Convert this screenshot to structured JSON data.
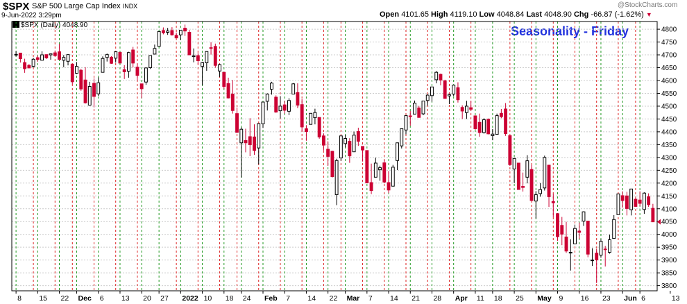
{
  "header": {
    "ticker": "$SPX",
    "name": "S&P 500 Large Cap Index",
    "exchange": "INDX",
    "datetime": "9-Jun-2022 3:29pm",
    "open_label": "Open",
    "open": "4101.65",
    "high_label": "High",
    "high": "4119.10",
    "low_label": "Low",
    "low": "4048.84",
    "last_label": "Last",
    "last": "4048.90",
    "chg_label": "Chg",
    "chg": "-66.87 (-1.62%)",
    "watermark": "@StockCharts.com"
  },
  "legend": {
    "text": "$SPX (Daily) 4048.90"
  },
  "annotation": {
    "title": "Seasonality - Friday"
  },
  "colors": {
    "up": "#000000",
    "down": "#cc0033",
    "friday_line": "#dd2222",
    "monday_line": "#229922",
    "grid": "#cccccc",
    "title": "#2233dd",
    "last_marker": "#cc0033"
  },
  "chart_data": {
    "type": "candlestick",
    "title": "Seasonality - Friday",
    "ylim": [
      3780,
      4830
    ],
    "y_ticks": [
      3800,
      3850,
      3900,
      3950,
      4000,
      4050,
      4100,
      4150,
      4200,
      4250,
      4300,
      4350,
      4400,
      4450,
      4500,
      4550,
      4600,
      4650,
      4700,
      4750,
      4800
    ],
    "x_tick_labels": [
      "8",
      "15",
      "22",
      "Dec",
      "6",
      "13",
      "20",
      "27",
      "2022",
      "10",
      "18",
      "24",
      "Feb",
      "7",
      "14",
      "22",
      "Mar",
      "7",
      "14",
      "21",
      "28",
      "Apr",
      "11",
      "18",
      "25",
      "May",
      "9",
      "16",
      "23",
      "Jun",
      "6",
      "13"
    ],
    "friday_lines": true,
    "monday_lines": true,
    "grid": true,
    "candles": [
      {
        "date": "2021-11-08",
        "o": 4701,
        "h": 4714,
        "l": 4694,
        "c": 4702
      },
      {
        "date": "2021-11-09",
        "o": 4707,
        "h": 4708,
        "l": 4670,
        "c": 4685
      },
      {
        "date": "2021-11-10",
        "o": 4670,
        "h": 4685,
        "l": 4630,
        "c": 4646
      },
      {
        "date": "2021-11-11",
        "o": 4659,
        "h": 4664,
        "l": 4648,
        "c": 4649
      },
      {
        "date": "2021-11-12",
        "o": 4655,
        "h": 4688,
        "l": 4651,
        "c": 4683
      },
      {
        "date": "2021-11-15",
        "o": 4689,
        "h": 4697,
        "l": 4673,
        "c": 4682
      },
      {
        "date": "2021-11-16",
        "o": 4679,
        "h": 4714,
        "l": 4679,
        "c": 4700
      },
      {
        "date": "2021-11-17",
        "o": 4701,
        "h": 4701,
        "l": 4684,
        "c": 4688
      },
      {
        "date": "2021-11-18",
        "o": 4700,
        "h": 4705,
        "l": 4681,
        "c": 4704
      },
      {
        "date": "2021-11-19",
        "o": 4708,
        "h": 4717,
        "l": 4694,
        "c": 4697
      },
      {
        "date": "2021-11-22",
        "o": 4712,
        "h": 4743,
        "l": 4682,
        "c": 4682
      },
      {
        "date": "2021-11-23",
        "o": 4679,
        "h": 4699,
        "l": 4652,
        "c": 4690
      },
      {
        "date": "2021-11-24",
        "o": 4675,
        "h": 4702,
        "l": 4659,
        "c": 4701
      },
      {
        "date": "2021-11-26",
        "o": 4664,
        "h": 4664,
        "l": 4585,
        "c": 4595
      },
      {
        "date": "2021-11-29",
        "o": 4628,
        "h": 4672,
        "l": 4625,
        "c": 4655
      },
      {
        "date": "2021-11-30",
        "o": 4640,
        "h": 4646,
        "l": 4560,
        "c": 4567
      },
      {
        "date": "2021-12-01",
        "o": 4602,
        "h": 4652,
        "l": 4510,
        "c": 4513
      },
      {
        "date": "2021-12-02",
        "o": 4504,
        "h": 4595,
        "l": 4504,
        "c": 4577
      },
      {
        "date": "2021-12-03",
        "o": 4589,
        "h": 4608,
        "l": 4495,
        "c": 4538
      },
      {
        "date": "2021-12-06",
        "o": 4548,
        "h": 4612,
        "l": 4540,
        "c": 4591
      },
      {
        "date": "2021-12-07",
        "o": 4632,
        "h": 4694,
        "l": 4632,
        "c": 4686
      },
      {
        "date": "2021-12-08",
        "o": 4690,
        "h": 4705,
        "l": 4674,
        "c": 4701
      },
      {
        "date": "2021-12-09",
        "o": 4691,
        "h": 4695,
        "l": 4665,
        "c": 4667
      },
      {
        "date": "2021-12-10",
        "o": 4687,
        "h": 4713,
        "l": 4670,
        "c": 4712
      },
      {
        "date": "2021-12-13",
        "o": 4710,
        "h": 4710,
        "l": 4667,
        "c": 4668
      },
      {
        "date": "2021-12-14",
        "o": 4642,
        "h": 4660,
        "l": 4606,
        "c": 4634
      },
      {
        "date": "2021-12-15",
        "o": 4636,
        "h": 4712,
        "l": 4611,
        "c": 4709
      },
      {
        "date": "2021-12-16",
        "o": 4719,
        "h": 4731,
        "l": 4651,
        "c": 4668
      },
      {
        "date": "2021-12-17",
        "o": 4652,
        "h": 4666,
        "l": 4600,
        "c": 4620
      },
      {
        "date": "2021-12-20",
        "o": 4587,
        "h": 4587,
        "l": 4531,
        "c": 4568
      },
      {
        "date": "2021-12-21",
        "o": 4594,
        "h": 4651,
        "l": 4583,
        "c": 4649
      },
      {
        "date": "2021-12-22",
        "o": 4650,
        "h": 4697,
        "l": 4645,
        "c": 4697
      },
      {
        "date": "2021-12-23",
        "o": 4703,
        "h": 4740,
        "l": 4703,
        "c": 4725
      },
      {
        "date": "2021-12-27",
        "o": 4733,
        "h": 4791,
        "l": 4733,
        "c": 4791
      },
      {
        "date": "2021-12-28",
        "o": 4795,
        "h": 4807,
        "l": 4780,
        "c": 4786
      },
      {
        "date": "2021-12-29",
        "o": 4788,
        "h": 4805,
        "l": 4778,
        "c": 4793
      },
      {
        "date": "2021-12-30",
        "o": 4795,
        "h": 4808,
        "l": 4775,
        "c": 4778
      },
      {
        "date": "2021-12-31",
        "o": 4776,
        "h": 4787,
        "l": 4765,
        "c": 4766
      },
      {
        "date": "2022-01-03",
        "o": 4778,
        "h": 4796,
        "l": 4758,
        "c": 4796
      },
      {
        "date": "2022-01-04",
        "o": 4804,
        "h": 4818,
        "l": 4774,
        "c": 4793
      },
      {
        "date": "2022-01-05",
        "o": 4788,
        "h": 4797,
        "l": 4699,
        "c": 4700
      },
      {
        "date": "2022-01-06",
        "o": 4693,
        "h": 4725,
        "l": 4671,
        "c": 4696
      },
      {
        "date": "2022-01-07",
        "o": 4697,
        "h": 4707,
        "l": 4663,
        "c": 4677
      },
      {
        "date": "2022-01-10",
        "o": 4655,
        "h": 4673,
        "l": 4582,
        "c": 4670
      },
      {
        "date": "2022-01-11",
        "o": 4669,
        "h": 4714,
        "l": 4638,
        "c": 4713
      },
      {
        "date": "2022-01-12",
        "o": 4728,
        "h": 4749,
        "l": 4701,
        "c": 4726
      },
      {
        "date": "2022-01-13",
        "o": 4733,
        "h": 4744,
        "l": 4650,
        "c": 4659
      },
      {
        "date": "2022-01-14",
        "o": 4637,
        "h": 4665,
        "l": 4614,
        "c": 4662
      },
      {
        "date": "2022-01-18",
        "o": 4632,
        "h": 4632,
        "l": 4568,
        "c": 4577
      },
      {
        "date": "2022-01-19",
        "o": 4588,
        "h": 4611,
        "l": 4530,
        "c": 4532
      },
      {
        "date": "2022-01-20",
        "o": 4547,
        "h": 4602,
        "l": 4471,
        "c": 4483
      },
      {
        "date": "2022-01-21",
        "o": 4471,
        "h": 4495,
        "l": 4395,
        "c": 4398
      },
      {
        "date": "2022-01-24",
        "o": 4357,
        "h": 4417,
        "l": 4222,
        "c": 4410
      },
      {
        "date": "2022-01-25",
        "o": 4366,
        "h": 4412,
        "l": 4320,
        "c": 4357
      },
      {
        "date": "2022-01-26",
        "o": 4381,
        "h": 4453,
        "l": 4305,
        "c": 4350
      },
      {
        "date": "2022-01-27",
        "o": 4380,
        "h": 4429,
        "l": 4310,
        "c": 4327
      },
      {
        "date": "2022-01-28",
        "o": 4337,
        "h": 4433,
        "l": 4273,
        "c": 4432
      },
      {
        "date": "2022-01-31",
        "o": 4431,
        "h": 4516,
        "l": 4415,
        "c": 4516
      },
      {
        "date": "2022-02-01",
        "o": 4519,
        "h": 4550,
        "l": 4483,
        "c": 4547
      },
      {
        "date": "2022-02-02",
        "o": 4566,
        "h": 4595,
        "l": 4545,
        "c": 4590
      },
      {
        "date": "2022-02-03",
        "o": 4535,
        "h": 4542,
        "l": 4474,
        "c": 4477
      },
      {
        "date": "2022-02-04",
        "o": 4482,
        "h": 4539,
        "l": 4452,
        "c": 4500
      },
      {
        "date": "2022-02-07",
        "o": 4505,
        "h": 4521,
        "l": 4471,
        "c": 4484
      },
      {
        "date": "2022-02-08",
        "o": 4480,
        "h": 4531,
        "l": 4465,
        "c": 4522
      },
      {
        "date": "2022-02-09",
        "o": 4547,
        "h": 4590,
        "l": 4547,
        "c": 4587
      },
      {
        "date": "2022-02-10",
        "o": 4553,
        "h": 4589,
        "l": 4492,
        "c": 4504
      },
      {
        "date": "2022-02-11",
        "o": 4506,
        "h": 4527,
        "l": 4401,
        "c": 4419
      },
      {
        "date": "2022-02-14",
        "o": 4412,
        "h": 4426,
        "l": 4365,
        "c": 4401
      },
      {
        "date": "2022-02-15",
        "o": 4429,
        "h": 4472,
        "l": 4429,
        "c": 4472
      },
      {
        "date": "2022-02-16",
        "o": 4455,
        "h": 4490,
        "l": 4429,
        "c": 4475
      },
      {
        "date": "2022-02-17",
        "o": 4456,
        "h": 4456,
        "l": 4373,
        "c": 4380
      },
      {
        "date": "2022-02-18",
        "o": 4384,
        "h": 4394,
        "l": 4327,
        "c": 4348
      },
      {
        "date": "2022-02-22",
        "o": 4332,
        "h": 4363,
        "l": 4267,
        "c": 4304
      },
      {
        "date": "2022-02-23",
        "o": 4324,
        "h": 4326,
        "l": 4222,
        "c": 4225
      },
      {
        "date": "2022-02-24",
        "o": 4155,
        "h": 4295,
        "l": 4114,
        "c": 4288
      },
      {
        "date": "2022-02-25",
        "o": 4298,
        "h": 4385,
        "l": 4287,
        "c": 4384
      },
      {
        "date": "2022-02-28",
        "o": 4354,
        "h": 4388,
        "l": 4339,
        "c": 4374
      },
      {
        "date": "2022-03-01",
        "o": 4363,
        "h": 4375,
        "l": 4279,
        "c": 4306
      },
      {
        "date": "2022-03-02",
        "o": 4322,
        "h": 4401,
        "l": 4322,
        "c": 4387
      },
      {
        "date": "2022-03-03",
        "o": 4401,
        "h": 4416,
        "l": 4345,
        "c": 4363
      },
      {
        "date": "2022-03-04",
        "o": 4343,
        "h": 4343,
        "l": 4284,
        "c": 4329
      },
      {
        "date": "2022-03-07",
        "o": 4327,
        "h": 4327,
        "l": 4199,
        "c": 4201
      },
      {
        "date": "2022-03-08",
        "o": 4202,
        "h": 4276,
        "l": 4157,
        "c": 4171
      },
      {
        "date": "2022-03-09",
        "o": 4223,
        "h": 4299,
        "l": 4223,
        "c": 4278
      },
      {
        "date": "2022-03-10",
        "o": 4252,
        "h": 4268,
        "l": 4209,
        "c": 4260
      },
      {
        "date": "2022-03-11",
        "o": 4279,
        "h": 4291,
        "l": 4200,
        "c": 4204
      },
      {
        "date": "2022-03-14",
        "o": 4202,
        "h": 4247,
        "l": 4161,
        "c": 4173
      },
      {
        "date": "2022-03-15",
        "o": 4188,
        "h": 4271,
        "l": 4187,
        "c": 4262
      },
      {
        "date": "2022-03-16",
        "o": 4288,
        "h": 4358,
        "l": 4251,
        "c": 4357
      },
      {
        "date": "2022-03-17",
        "o": 4345,
        "h": 4412,
        "l": 4335,
        "c": 4412
      },
      {
        "date": "2022-03-18",
        "o": 4407,
        "h": 4465,
        "l": 4390,
        "c": 4463
      },
      {
        "date": "2022-03-21",
        "o": 4462,
        "h": 4481,
        "l": 4424,
        "c": 4461
      },
      {
        "date": "2022-03-22",
        "o": 4469,
        "h": 4522,
        "l": 4469,
        "c": 4512
      },
      {
        "date": "2022-03-23",
        "o": 4493,
        "h": 4501,
        "l": 4455,
        "c": 4456
      },
      {
        "date": "2022-03-24",
        "o": 4470,
        "h": 4520,
        "l": 4465,
        "c": 4520
      },
      {
        "date": "2022-03-25",
        "o": 4522,
        "h": 4546,
        "l": 4502,
        "c": 4543
      },
      {
        "date": "2022-03-28",
        "o": 4541,
        "h": 4575,
        "l": 4517,
        "c": 4575
      },
      {
        "date": "2022-03-29",
        "o": 4603,
        "h": 4637,
        "l": 4589,
        "c": 4632
      },
      {
        "date": "2022-03-30",
        "o": 4624,
        "h": 4627,
        "l": 4581,
        "c": 4602
      },
      {
        "date": "2022-03-31",
        "o": 4599,
        "h": 4603,
        "l": 4530,
        "c": 4530
      },
      {
        "date": "2022-04-01",
        "o": 4540,
        "h": 4548,
        "l": 4508,
        "c": 4545
      },
      {
        "date": "2022-04-04",
        "o": 4547,
        "h": 4583,
        "l": 4539,
        "c": 4582
      },
      {
        "date": "2022-04-05",
        "o": 4572,
        "h": 4593,
        "l": 4514,
        "c": 4525
      },
      {
        "date": "2022-04-06",
        "o": 4495,
        "h": 4503,
        "l": 4450,
        "c": 4481
      },
      {
        "date": "2022-04-07",
        "o": 4475,
        "h": 4521,
        "l": 4450,
        "c": 4500
      },
      {
        "date": "2022-04-08",
        "o": 4494,
        "h": 4520,
        "l": 4482,
        "c": 4488
      },
      {
        "date": "2022-04-11",
        "o": 4462,
        "h": 4464,
        "l": 4408,
        "c": 4412
      },
      {
        "date": "2022-04-12",
        "o": 4437,
        "h": 4471,
        "l": 4381,
        "c": 4397
      },
      {
        "date": "2022-04-13",
        "o": 4397,
        "h": 4453,
        "l": 4393,
        "c": 4447
      },
      {
        "date": "2022-04-14",
        "o": 4449,
        "h": 4452,
        "l": 4390,
        "c": 4392
      },
      {
        "date": "2022-04-18",
        "o": 4385,
        "h": 4411,
        "l": 4367,
        "c": 4391
      },
      {
        "date": "2022-04-19",
        "o": 4390,
        "h": 4471,
        "l": 4390,
        "c": 4463
      },
      {
        "date": "2022-04-20",
        "o": 4472,
        "h": 4489,
        "l": 4453,
        "c": 4459
      },
      {
        "date": "2022-04-21",
        "o": 4489,
        "h": 4512,
        "l": 4384,
        "c": 4393
      },
      {
        "date": "2022-04-22",
        "o": 4385,
        "h": 4386,
        "l": 4267,
        "c": 4272
      },
      {
        "date": "2022-04-25",
        "o": 4255,
        "h": 4299,
        "l": 4200,
        "c": 4296
      },
      {
        "date": "2022-04-26",
        "o": 4278,
        "h": 4278,
        "l": 4175,
        "c": 4175
      },
      {
        "date": "2022-04-27",
        "o": 4187,
        "h": 4241,
        "l": 4167,
        "c": 4183
      },
      {
        "date": "2022-04-28",
        "o": 4223,
        "h": 4309,
        "l": 4199,
        "c": 4287
      },
      {
        "date": "2022-04-29",
        "o": 4253,
        "h": 4270,
        "l": 4129,
        "c": 4132
      },
      {
        "date": "2022-05-02",
        "o": 4130,
        "h": 4169,
        "l": 4062,
        "c": 4155
      },
      {
        "date": "2022-05-03",
        "o": 4159,
        "h": 4200,
        "l": 4147,
        "c": 4175
      },
      {
        "date": "2022-05-04",
        "o": 4181,
        "h": 4307,
        "l": 4171,
        "c": 4300
      },
      {
        "date": "2022-05-05",
        "o": 4270,
        "h": 4270,
        "l": 4107,
        "c": 4147
      },
      {
        "date": "2022-05-06",
        "o": 4128,
        "h": 4158,
        "l": 4067,
        "c": 4123
      },
      {
        "date": "2022-05-09",
        "o": 4081,
        "h": 4081,
        "l": 3975,
        "c": 3991
      },
      {
        "date": "2022-05-10",
        "o": 4035,
        "h": 4068,
        "l": 3958,
        "c": 4001
      },
      {
        "date": "2022-05-11",
        "o": 3990,
        "h": 4049,
        "l": 3928,
        "c": 3935
      },
      {
        "date": "2022-05-12",
        "o": 3930,
        "h": 3981,
        "l": 3859,
        "c": 3930
      },
      {
        "date": "2022-05-13",
        "o": 3963,
        "h": 4038,
        "l": 3963,
        "c": 4023
      },
      {
        "date": "2022-05-16",
        "o": 4013,
        "h": 4046,
        "l": 3983,
        "c": 4008
      },
      {
        "date": "2022-05-17",
        "o": 4052,
        "h": 4090,
        "l": 4033,
        "c": 4088
      },
      {
        "date": "2022-05-18",
        "o": 4052,
        "h": 4052,
        "l": 3911,
        "c": 3923
      },
      {
        "date": "2022-05-19",
        "o": 3899,
        "h": 3946,
        "l": 3877,
        "c": 3900
      },
      {
        "date": "2022-05-20",
        "o": 3927,
        "h": 3943,
        "l": 3810,
        "c": 3901
      },
      {
        "date": "2022-05-23",
        "o": 3919,
        "h": 3981,
        "l": 3909,
        "c": 3973
      },
      {
        "date": "2022-05-24",
        "o": 3943,
        "h": 3955,
        "l": 3875,
        "c": 3941
      },
      {
        "date": "2022-05-25",
        "o": 3930,
        "h": 3999,
        "l": 3925,
        "c": 3979
      },
      {
        "date": "2022-05-26",
        "o": 3984,
        "h": 4075,
        "l": 3984,
        "c": 4058
      },
      {
        "date": "2022-05-27",
        "o": 4077,
        "h": 4158,
        "l": 4077,
        "c": 4158
      },
      {
        "date": "2022-05-31",
        "o": 4151,
        "h": 4168,
        "l": 4104,
        "c": 4132
      },
      {
        "date": "2022-06-01",
        "o": 4150,
        "h": 4166,
        "l": 4074,
        "c": 4101
      },
      {
        "date": "2022-06-02",
        "o": 4096,
        "h": 4177,
        "l": 4074,
        "c": 4177
      },
      {
        "date": "2022-06-03",
        "o": 4137,
        "h": 4143,
        "l": 4107,
        "c": 4109
      },
      {
        "date": "2022-06-06",
        "o": 4134,
        "h": 4168,
        "l": 4110,
        "c": 4121
      },
      {
        "date": "2022-06-07",
        "o": 4097,
        "h": 4164,
        "l": 4080,
        "c": 4161
      },
      {
        "date": "2022-06-08",
        "o": 4147,
        "h": 4160,
        "l": 4107,
        "c": 4116
      },
      {
        "date": "2022-06-09",
        "o": 4101.65,
        "h": 4119.1,
        "l": 4048.84,
        "c": 4048.9
      }
    ]
  }
}
